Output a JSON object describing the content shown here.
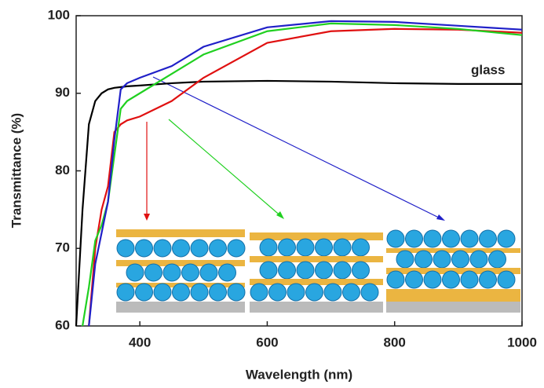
{
  "chart_data": {
    "type": "line",
    "xlabel": "Wavelength (nm)",
    "ylabel": "Transmittance (%)",
    "annotations": [
      "glass"
    ],
    "x": [
      300,
      310,
      320,
      330,
      340,
      350,
      360,
      370,
      380,
      400,
      450,
      500,
      600,
      700,
      800,
      900,
      1000
    ],
    "series": [
      {
        "name": "glass",
        "color": "#000000",
        "values": [
          60,
          75,
          86,
          89,
          90,
          90.5,
          90.7,
          90.8,
          90.9,
          91,
          91.3,
          91.5,
          91.6,
          91.5,
          91.3,
          91.2,
          91.2
        ]
      },
      {
        "color": "#e01010",
        "values": [
          null,
          null,
          60,
          70,
          75,
          78,
          85,
          86,
          86.5,
          87,
          89,
          92,
          96.5,
          98,
          98.3,
          98.2,
          97.8
        ]
      },
      {
        "color": "#20d020",
        "values": [
          null,
          60,
          65,
          71,
          73,
          76,
          82,
          88,
          89,
          90,
          92.5,
          95,
          98,
          99,
          98.8,
          98.3,
          97.5
        ]
      },
      {
        "color": "#2020c8",
        "values": [
          null,
          null,
          60,
          68,
          72,
          76,
          84,
          90.5,
          91.3,
          92,
          93.5,
          96,
          98.5,
          99.3,
          99.2,
          98.7,
          98.2
        ]
      }
    ],
    "xlim": [
      300,
      1000
    ],
    "xticks": [
      400,
      600,
      800,
      1000
    ],
    "ylim": [
      60,
      100
    ],
    "yticks": [
      60,
      70,
      80,
      90,
      100
    ]
  }
}
